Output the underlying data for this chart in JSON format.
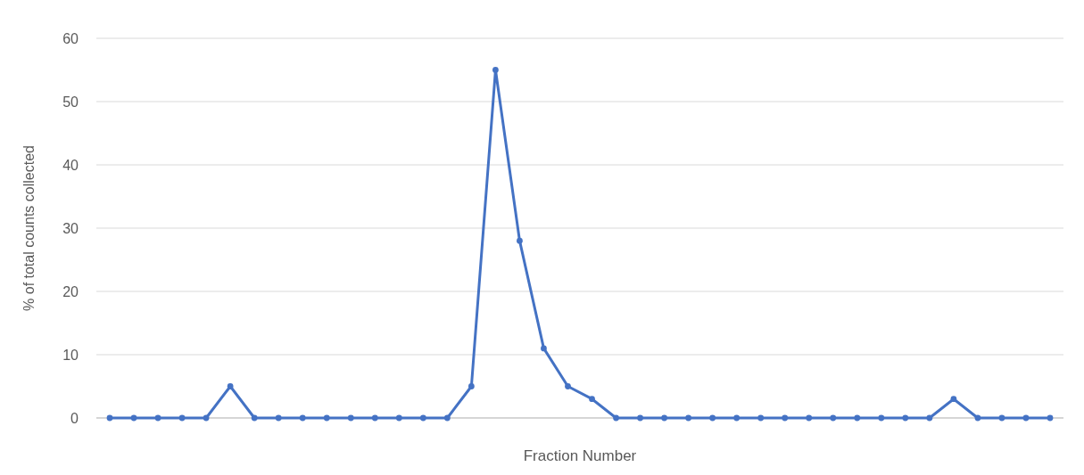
{
  "chart_data": {
    "type": "line",
    "xlabel": "Fraction Number",
    "ylabel": "% of total counts collected",
    "categories": [
      null,
      null,
      null,
      null,
      null,
      null,
      null,
      null,
      null,
      null,
      null,
      null,
      null,
      null,
      null,
      null,
      null,
      null,
      null,
      null,
      null,
      null,
      null,
      null,
      null,
      null,
      null,
      null,
      null,
      null,
      null,
      null,
      null,
      null,
      null,
      null,
      null,
      null,
      null,
      null
    ],
    "series": [
      {
        "color": "#4472c4",
        "values": [
          0,
          0,
          0,
          0,
          0,
          5,
          0,
          0,
          0,
          0,
          0,
          0,
          0,
          0,
          0,
          5,
          55,
          28,
          11,
          5,
          3,
          0,
          0,
          0,
          0,
          0,
          0,
          0,
          0,
          0,
          0,
          0,
          0,
          0,
          0,
          3,
          0,
          0,
          0,
          0
        ]
      }
    ],
    "ylim": [
      0,
      60
    ],
    "yticks": [
      0,
      10,
      20,
      30,
      40,
      50,
      60
    ],
    "grid": "y",
    "marker": "circle",
    "line_style": "solid"
  }
}
